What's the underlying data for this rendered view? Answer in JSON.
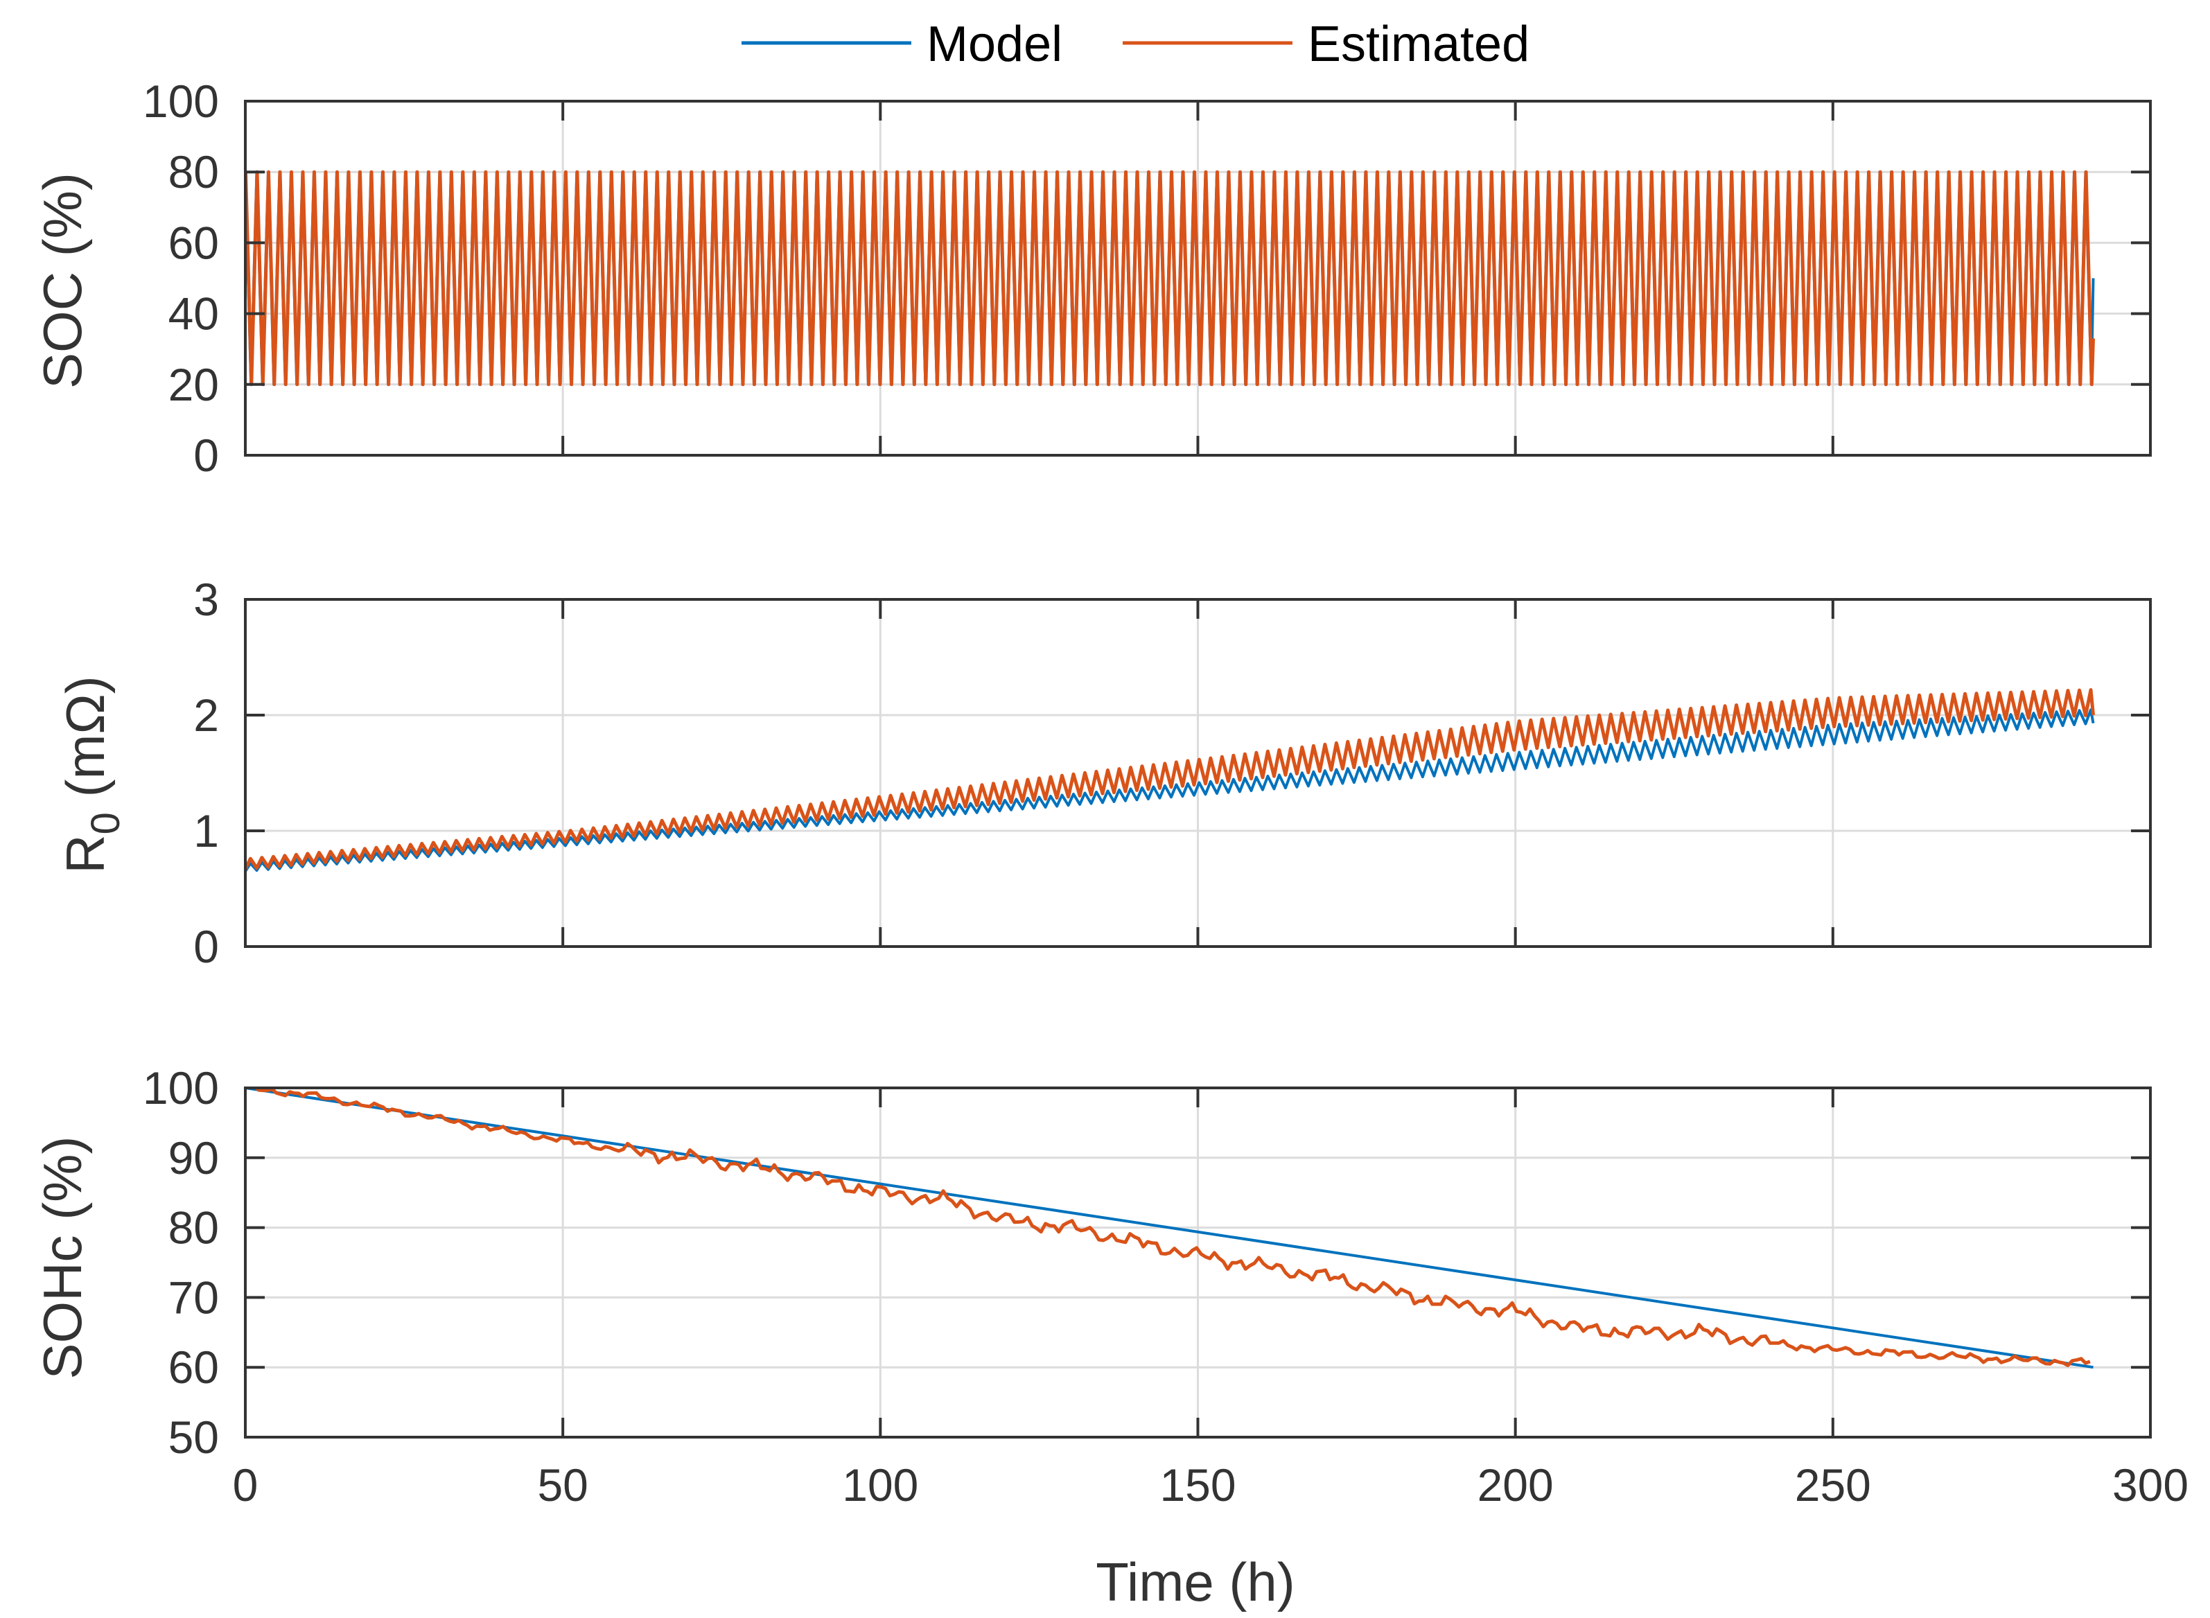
{
  "chart_data": {
    "type": "line",
    "shared_x": {
      "label": "Time (h)",
      "range": [
        0,
        300
      ],
      "ticks": [
        0,
        50,
        100,
        150,
        200,
        250,
        300
      ]
    },
    "legend": {
      "placement": "top-center",
      "entries": [
        {
          "name": "Model",
          "color": "#0072BD"
        },
        {
          "name": "Estimated",
          "color": "#D95319"
        }
      ]
    },
    "panels": [
      {
        "id": "soc",
        "ylabel": "SOC (%)",
        "ylim": [
          0,
          100
        ],
        "yticks": [
          0,
          20,
          40,
          60,
          80,
          100
        ],
        "grid": true,
        "series": [
          {
            "name": "Model",
            "color": "#0072BD",
            "description": "cycling between 20 and 80 %",
            "cycle_period_h": 1.8,
            "min": 20,
            "max": 80,
            "t_end": 291
          },
          {
            "name": "Estimated",
            "color": "#D95319",
            "cycle_period_h": 1.8,
            "min": 20,
            "max": 80,
            "t_end": 291,
            "end_value": 33
          }
        ]
      },
      {
        "id": "r0",
        "ylabel": "R0 (mΩ)",
        "ylabel_main": "R",
        "ylabel_sub": "0",
        "ylabel_unit": " (mΩ)",
        "ylim": [
          0,
          3
        ],
        "yticks": [
          0,
          1,
          2,
          3
        ],
        "grid": true,
        "series": [
          {
            "name": "Model",
            "color": "#0072BD",
            "x": [
              0,
              50,
              100,
              150,
              200,
              250,
              291
            ],
            "y_base": [
              0.65,
              0.87,
              1.09,
              1.31,
              1.53,
              1.75,
              1.93
            ],
            "y_peak": [
              0.72,
              0.94,
              1.17,
              1.42,
              1.68,
              1.92,
              2.05
            ]
          },
          {
            "name": "Estimated",
            "color": "#D95319",
            "x": [
              0,
              50,
              100,
              150,
              200,
              250,
              291
            ],
            "y_base": [
              0.67,
              0.9,
              1.14,
              1.4,
              1.7,
              1.9,
              2.0
            ],
            "y_peak": [
              0.76,
              1.0,
              1.3,
              1.62,
              1.95,
              2.15,
              2.22
            ]
          }
        ]
      },
      {
        "id": "sohc",
        "ylabel": "SOHc (%)",
        "ylim": [
          50,
          100
        ],
        "yticks": [
          50,
          60,
          70,
          80,
          90,
          100
        ],
        "grid": true,
        "series": [
          {
            "name": "Model",
            "color": "#0072BD",
            "x": [
              0,
              291
            ],
            "y": [
              100,
              60
            ]
          },
          {
            "name": "Estimated",
            "color": "#D95319",
            "x": [
              0,
              10,
              25,
              40,
              50,
              60,
              70,
              85,
              100,
              110,
              120,
              130,
              140,
              150,
              160,
              170,
              180,
              190,
              200,
              210,
              220,
              230,
              240,
              250,
              260,
              270,
              280,
              291
            ],
            "y": [
              100,
              99,
              96.5,
              94,
              92.5,
              91,
              90,
              88,
              85,
              84,
              81,
              80,
              78,
              76,
              74.5,
              73,
              71,
              69,
              68,
              65.5,
              65,
              65,
              63.5,
              62.5,
              62,
              61.5,
              61,
              60.7
            ]
          }
        ]
      }
    ]
  }
}
